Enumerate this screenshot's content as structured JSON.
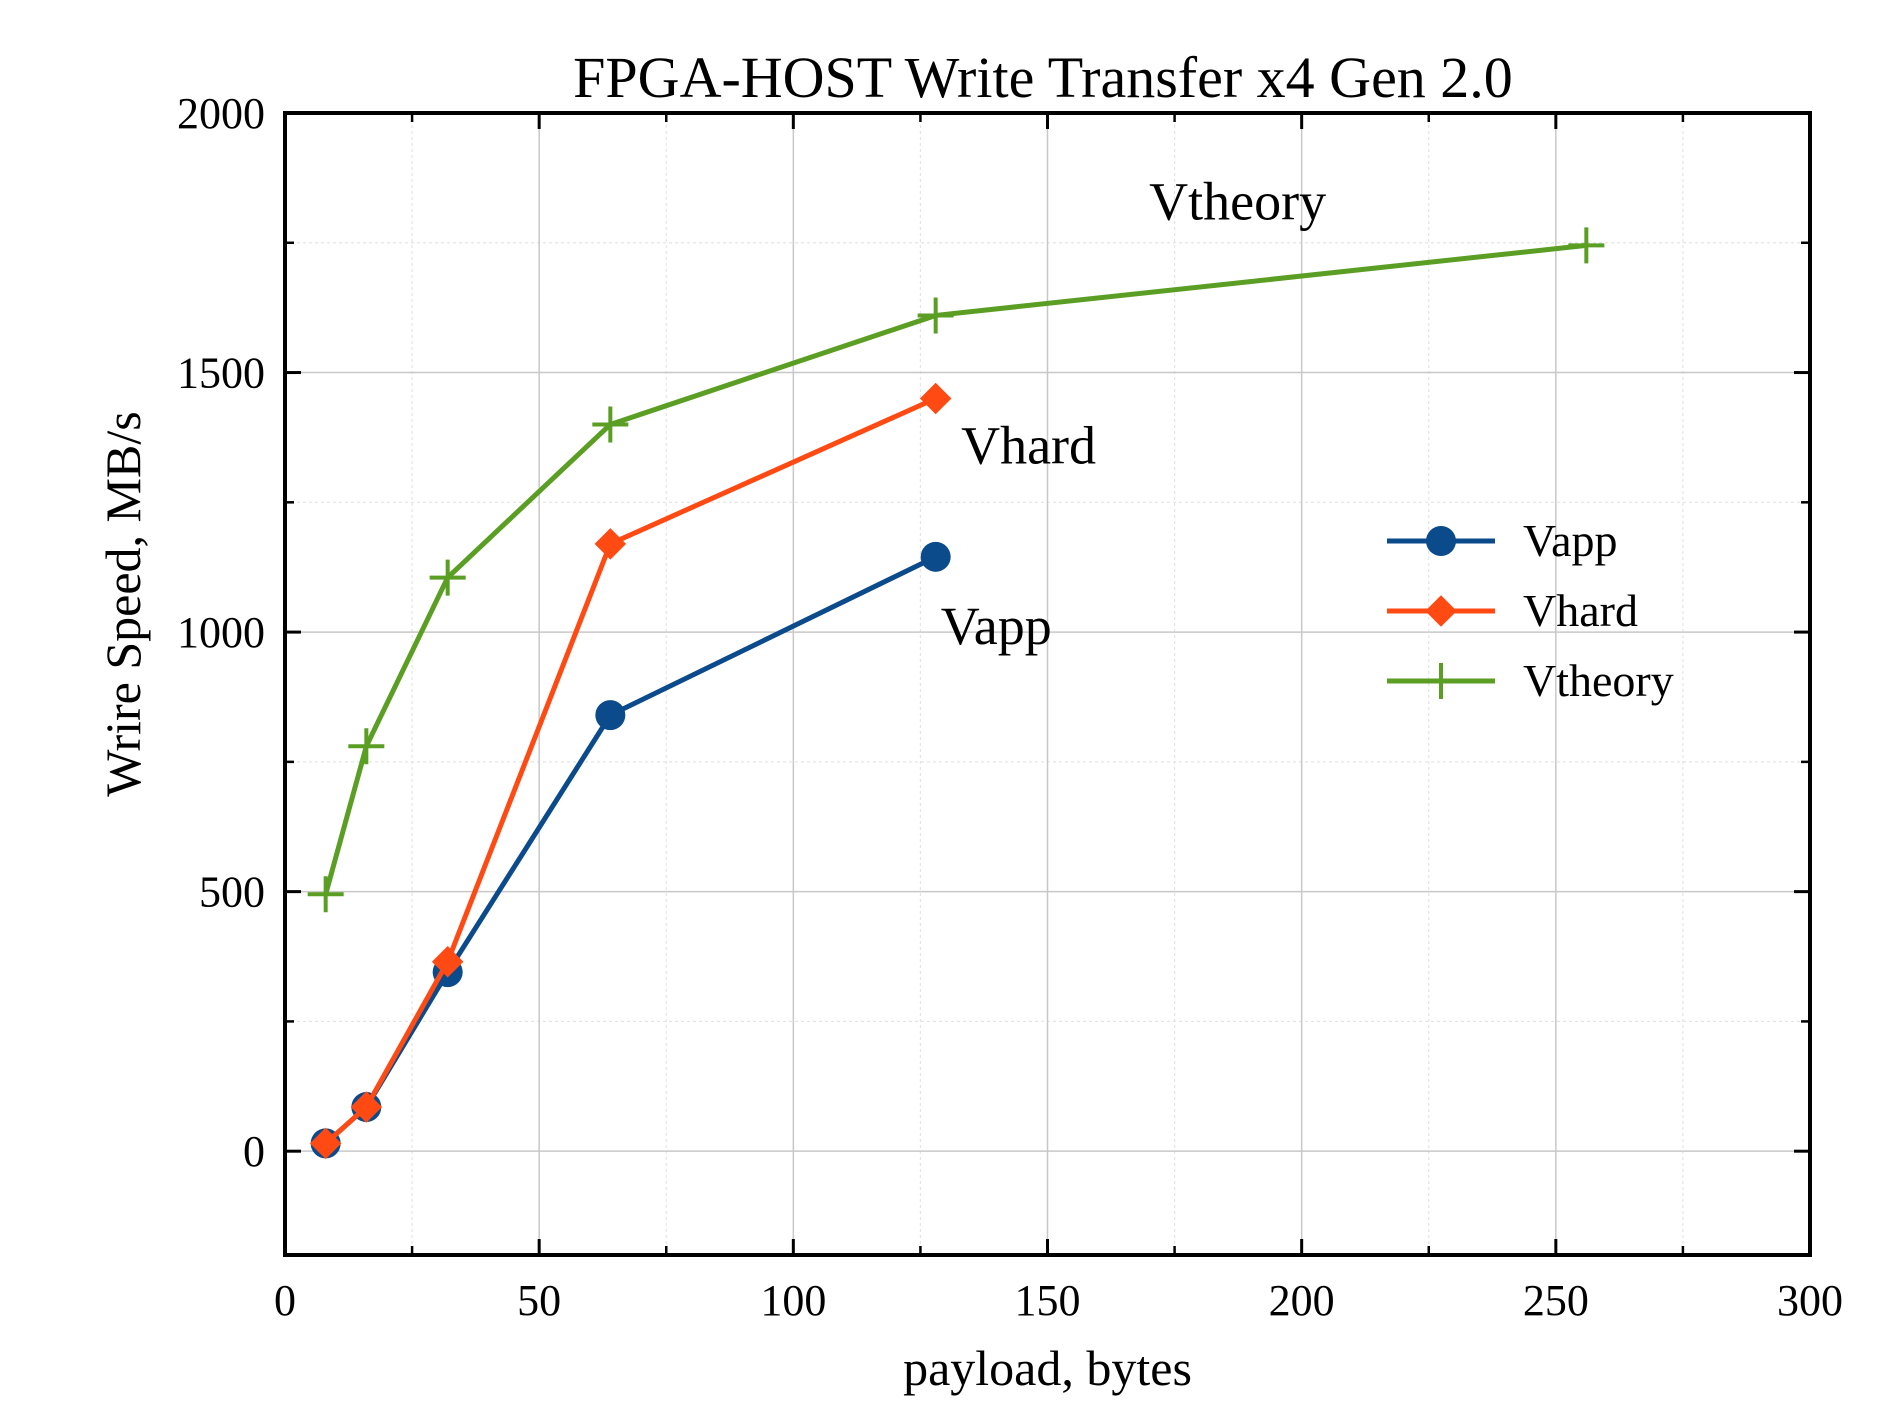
{
  "chart_data": {
    "type": "line",
    "title": "FPGA-HOST Write Transfer x4 Gen 2.0",
    "xlabel": "payload, bytes",
    "ylabel": "Wrire Speed, MB/s",
    "xlim": [
      0,
      300
    ],
    "ylim": [
      -200,
      2000
    ],
    "xticks": [
      0,
      50,
      100,
      150,
      200,
      250,
      300
    ],
    "yticks": [
      0,
      500,
      1000,
      1500,
      2000
    ],
    "xtick_labels": [
      "0",
      "50",
      "100",
      "150",
      "200",
      "250",
      "300"
    ],
    "ytick_labels": [
      "0",
      "500",
      "1000",
      "1500",
      "2000"
    ],
    "grid": true,
    "legend_position": "center-right",
    "series": [
      {
        "name": "Vapp",
        "color": "#0b4a8b",
        "marker": "circle",
        "x": [
          8,
          16,
          32,
          64,
          128
        ],
        "y": [
          15,
          85,
          345,
          840,
          1145
        ]
      },
      {
        "name": "Vhard",
        "color": "#ff4a14",
        "marker": "diamond",
        "x": [
          8,
          16,
          32,
          64,
          128
        ],
        "y": [
          15,
          85,
          365,
          1170,
          1450
        ]
      },
      {
        "name": "Vtheory",
        "color": "#5a9e23",
        "marker": "plus",
        "x": [
          8,
          16,
          32,
          64,
          128,
          256
        ],
        "y": [
          495,
          780,
          1105,
          1400,
          1610,
          1745
        ]
      }
    ],
    "annotations": [
      {
        "text": "Vtheory",
        "x": 170,
        "y": 1795
      },
      {
        "text": "Vhard",
        "x": 133,
        "y": 1325
      },
      {
        "text": "Vapp",
        "x": 129,
        "y": 977
      }
    ]
  }
}
